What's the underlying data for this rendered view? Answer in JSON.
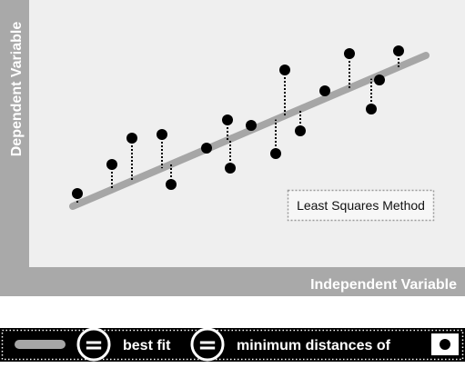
{
  "diagram": {
    "y_axis_label": "Dependent Variable",
    "x_axis_label": "Independent Variable",
    "method_label": "Least Squares Method",
    "colors": {
      "frame": "#a9a9a9",
      "plot_background": "#efefef",
      "fit_line": "#a6a6a6",
      "point": "#000000",
      "legend_bar": "#000000"
    }
  },
  "legend": {
    "best_fit_text": "best fit",
    "minimum_distances_text": "minimum distances of",
    "equals_symbol": "="
  }
}
